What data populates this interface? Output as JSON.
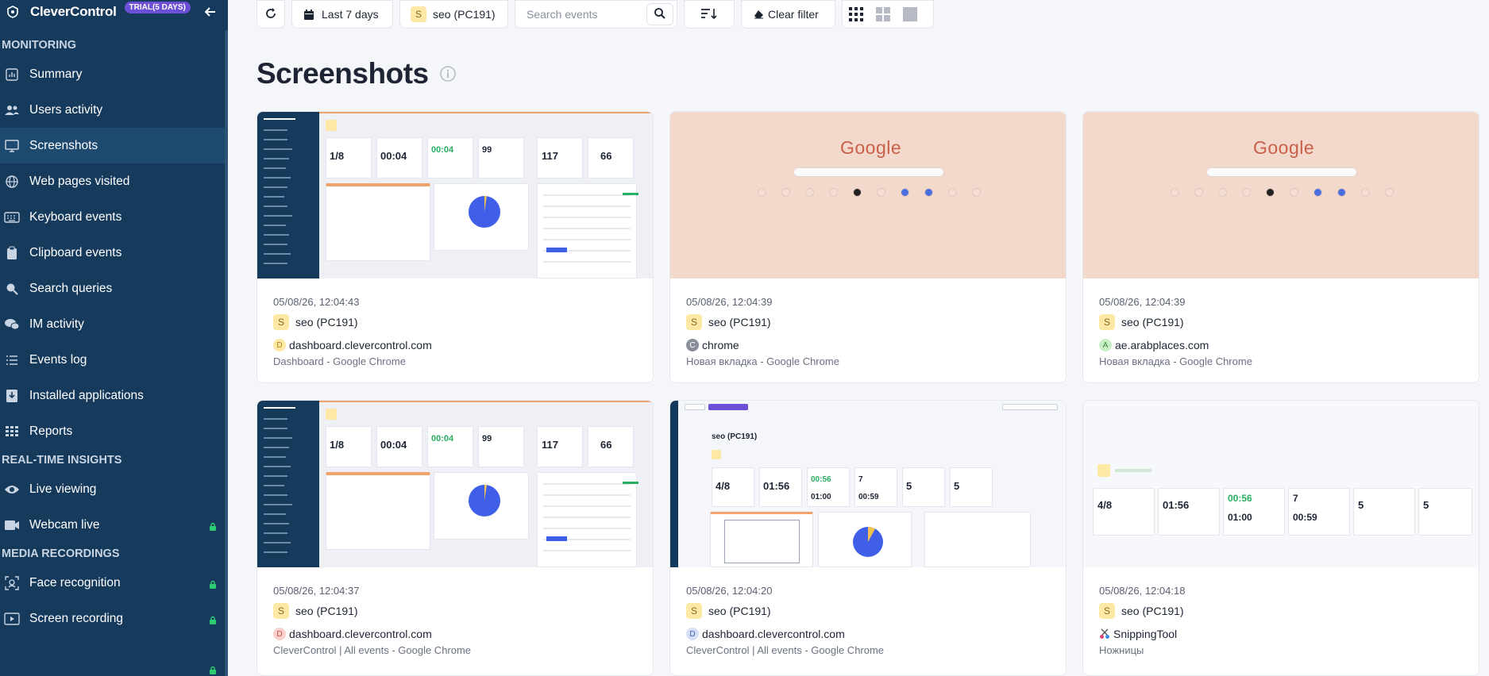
{
  "sidebar": {
    "app_name": "CleverControl",
    "trial_badge": "TRIAL(5 DAYS)",
    "sections": {
      "monitoring": "MONITORING",
      "realtime": "REAL-TIME INSIGHTS",
      "media": "MEDIA RECORDINGS"
    },
    "items": {
      "summary": "Summary",
      "users_activity": "Users activity",
      "screenshots": "Screenshots",
      "web_pages": "Web pages visited",
      "keyboard": "Keyboard events",
      "clipboard": "Clipboard events",
      "search": "Search queries",
      "im": "IM activity",
      "events_log": "Events log",
      "installed_apps": "Installed applications",
      "reports": "Reports",
      "live_viewing": "Live viewing",
      "webcam_live": "Webcam live",
      "face_recognition": "Face recognition",
      "screen_recording": "Screen recording"
    },
    "colors": {
      "background": "#163a5c",
      "active": "#1e4a70",
      "lock": "#2ecc71"
    }
  },
  "toolbar": {
    "date_range": "Last 7 days",
    "user_filter": "seo (PC191)",
    "user_avatar": "S",
    "search_placeholder": "Search events",
    "clear_filter": "Clear filter"
  },
  "page": {
    "title": "Screenshots"
  },
  "thumb_text": {
    "google": "Google",
    "d1": "1/8",
    "d2": "00:04",
    "d3": "00:04",
    "d4": "99",
    "d5": "117",
    "d6": "66",
    "e1": "4/8",
    "e2": "01:56",
    "e3": "00:56",
    "e4": "7",
    "e5": "5",
    "e6": "5",
    "e3b": "01:00",
    "e4b": "00:59",
    "seo": "seo (PC191)"
  },
  "cards": [
    {
      "timestamp": "05/08/26, 12:04:43",
      "user": "seo (PC191)",
      "user_avatar": "S",
      "app_letter": "D",
      "app": "dashboard.clevercontrol.com",
      "window": "Dashboard - Google Chrome",
      "app_color": "#fde8a5"
    },
    {
      "timestamp": "05/08/26, 12:04:39",
      "user": "seo (PC191)",
      "user_avatar": "S",
      "app_letter": "C",
      "app": "chrome",
      "window": "Новая вкладка - Google Chrome",
      "app_color": "#9aa0ad"
    },
    {
      "timestamp": "05/08/26, 12:04:39",
      "user": "seo (PC191)",
      "user_avatar": "S",
      "app_letter": "A",
      "app": "ae.arabplaces.com",
      "window": "Новая вкладка - Google Chrome",
      "app_color": "#c9efc6"
    },
    {
      "timestamp": "05/08/26, 12:04:37",
      "user": "seo (PC191)",
      "user_avatar": "S",
      "app_letter": "D",
      "app": "dashboard.clevercontrol.com",
      "window": "CleverControl | All events - Google Chrome",
      "app_color": "#fcd0cc"
    },
    {
      "timestamp": "05/08/26, 12:04:20",
      "user": "seo (PC191)",
      "user_avatar": "S",
      "app_letter": "D",
      "app": "dashboard.clevercontrol.com",
      "window": "CleverControl | All events - Google Chrome",
      "app_color": "#d6def8"
    },
    {
      "timestamp": "05/08/26, 12:04:18",
      "user": "seo (PC191)",
      "user_avatar": "S",
      "app_letter": "",
      "app": "SnippingTool",
      "window": "Ножницы",
      "app_color": "#f0c4d8"
    }
  ]
}
